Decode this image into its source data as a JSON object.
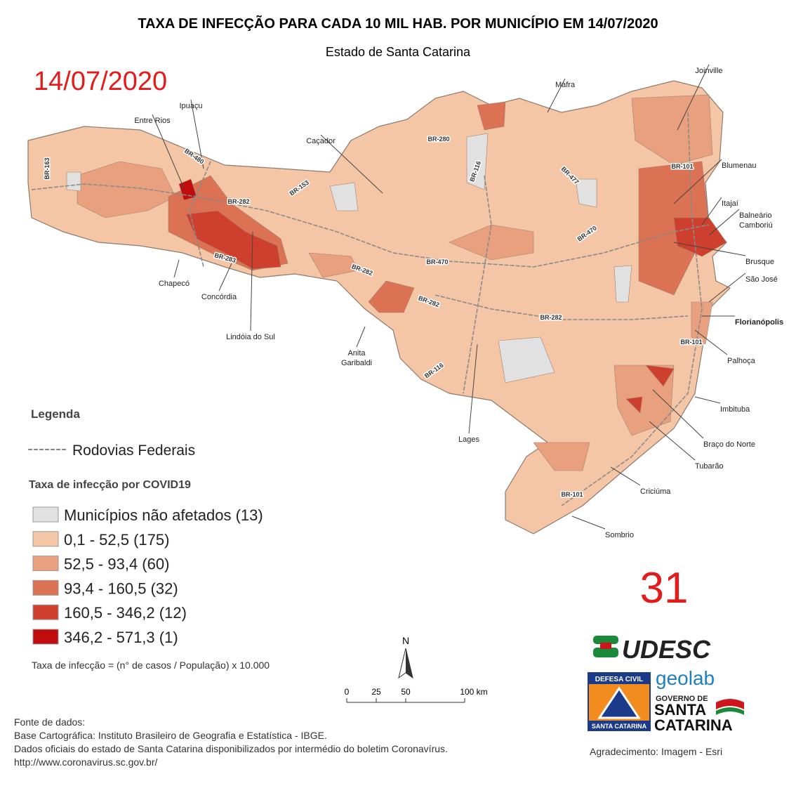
{
  "title": "TAXA DE INFECÇÃO PARA CADA 10 MIL HAB. POR MUNICÍPIO EM 14/07/2020",
  "subtitle": "Estado de Santa Catarina",
  "date": "14/07/2020",
  "bulletin_number": "31",
  "map": {
    "cities": [
      "Joinville",
      "Mafra",
      "Ipuaçu",
      "Entre Rios",
      "Caçador",
      "Blumenau",
      "Itajaí",
      "Balneário",
      "Camboriú",
      "Brusque",
      "São José",
      "Florianópolis",
      "Palhoça",
      "Imbituba",
      "Braço do Norte",
      "Tubarão",
      "Criciúma",
      "Sombrio",
      "Lages",
      "Anita",
      "Garibaldi",
      "Lindóia do Sul",
      "Concórdia",
      "Chapecó"
    ],
    "roads": [
      "BR-163",
      "BR-480",
      "BR-282",
      "BR-153",
      "BR-283",
      "BR-282",
      "BR-470",
      "BR-282",
      "BR-282",
      "BR-116",
      "BR-280",
      "BR-116",
      "BR-477",
      "BR-470",
      "BR-101",
      "BR-101",
      "BR-101"
    ]
  },
  "legend": {
    "title": "Legenda",
    "roads": "Rodovias Federais",
    "classes_title": "Taxa de infecção por COVID19",
    "classes": [
      {
        "label": "Municípios não afetados  (13)",
        "color": "#e1e1e1"
      },
      {
        "label": "0,1 - 52,5 (175)",
        "color": "#f4c6a6"
      },
      {
        "label": "52,5 - 93,4 (60)",
        "color": "#e9a07e"
      },
      {
        "label": "93,4 - 160,5 (32)",
        "color": "#dc7254"
      },
      {
        "label": "160,5 - 346,2 (12)",
        "color": "#cf3f2e"
      },
      {
        "label": "346,2 - 571,3 (1)",
        "color": "#c00c0c"
      }
    ],
    "formula": "Taxa de infecção = (n° de casos / População) x 10.000"
  },
  "scale": {
    "north": "N",
    "ticks": [
      "0",
      "25",
      "50",
      "100 km"
    ]
  },
  "logos": {
    "udesc": "UDESC",
    "geolab": "geolab",
    "defesa_civil": "DEFESA CIVIL",
    "defesa_civil_state": "SANTA CATARINA",
    "governo": "GOVERNO DE",
    "santa": "SANTA",
    "catarina": "CATARINA"
  },
  "sources": {
    "title": "Fonte de dados:",
    "lines": [
      "Base Cartográfica: Instituto Brasileiro de Geografia e Estatística - IBGE.",
      "Dados oficiais do estado de Santa Catarina disponibilizados por intermédio do boletim Coronavírus.",
      "http://www.coronavirus.sc.gov.br/"
    ]
  },
  "credit": "Agradecimento: Imagem - Esri"
}
